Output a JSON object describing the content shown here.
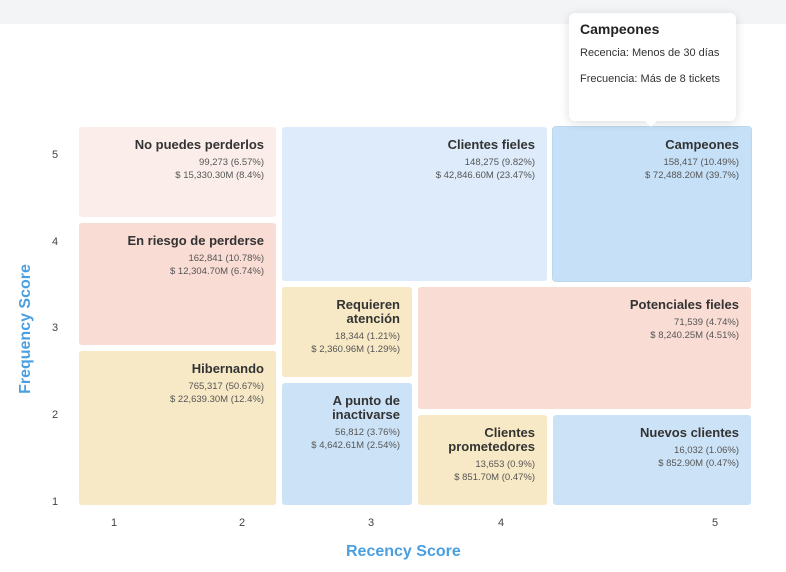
{
  "chart_data": {
    "type": "heatmap",
    "xlabel": "Recency Score",
    "ylabel": "Frequency Score",
    "x_ticks": [
      "1",
      "2",
      "3",
      "4",
      "5"
    ],
    "y_ticks": [
      "5",
      "4",
      "3",
      "2",
      "1"
    ],
    "segments": [
      {
        "name": "No puedes perderlos",
        "count": "99,273 (6.57%)",
        "revenue": "$ 15,330.30M (8.4%)",
        "color": "#fbeeea"
      },
      {
        "name": "Clientes fieles",
        "count": "148,275 (9.82%)",
        "revenue": "$ 42,846.60M (23.47%)",
        "color": "#ddebfb"
      },
      {
        "name": "Campeones",
        "count": "158,417 (10.49%)",
        "revenue": "$ 72,488.20M (39.7%)",
        "color": "#c6e0f7"
      },
      {
        "name": "En riesgo de perderse",
        "count": "162,841 (10.78%)",
        "revenue": "$ 12,304.70M (6.74%)",
        "color": "#f9dcd3"
      },
      {
        "name": "Requieren atención",
        "count": "18,344 (1.21%)",
        "revenue": "$ 2,360.96M (1.29%)",
        "color": "#f8e9c6"
      },
      {
        "name": "Potenciales fieles",
        "count": "71,539 (4.74%)",
        "revenue": "$ 8,240.25M (4.51%)",
        "color": "#f9dcd3"
      },
      {
        "name": "Hibernando",
        "count": "765,317 (50.67%)",
        "revenue": "$ 22,639.30M (12.4%)",
        "color": "#f8e9c6"
      },
      {
        "name": "A punto de inactivarse",
        "count": "56,812 (3.76%)",
        "revenue": "$ 4,642.61M (2.54%)",
        "color": "#cce3f7"
      },
      {
        "name": "Clientes prometedores",
        "count": "13,653 (0.9%)",
        "revenue": "$ 851.70M (0.47%)",
        "color": "#f8e9c6"
      },
      {
        "name": "Nuevos clientes",
        "count": "16,032 (1.06%)",
        "revenue": "$ 852.90M (0.47%)",
        "color": "#cce3f7"
      }
    ]
  },
  "tooltip": {
    "title": "Campeones",
    "line1": "Recencia: Menos de 30 días",
    "line2": "Frecuencia: Más de 8 tickets"
  }
}
